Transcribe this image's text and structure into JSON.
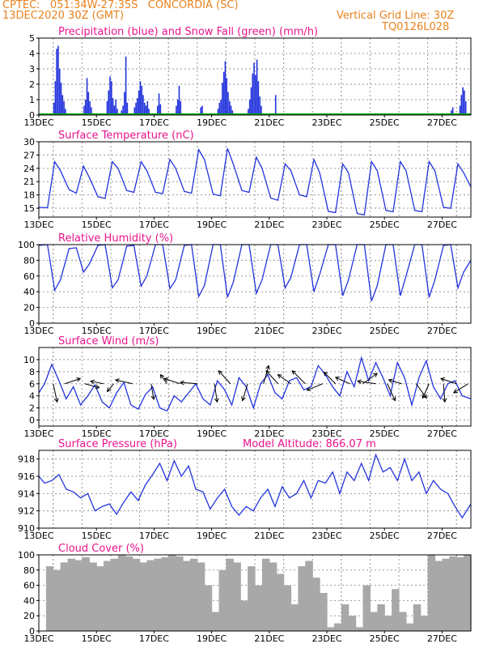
{
  "header": {
    "line1": "CPTEC:   051:34W-27:35S   CONCORDIA (SC)",
    "line2": "13DEC2020 30Z (GMT)",
    "grid_line": "Vertical Grid Line: 30Z",
    "run_code": "TQ0126L028"
  },
  "colors": {
    "header": "#e8821e",
    "title": "#e8148c",
    "series": "#2233dd",
    "snow": "#00aa00",
    "cloud": "#a8a8a8",
    "grid": "#9a9a9a",
    "arrow": "#000000"
  },
  "chart_data": [
    {
      "type": "bar",
      "title": "Precipitation (blue) and Snow Fall (green) (mm/h)",
      "ylim": [
        0,
        5
      ],
      "yticks": [
        0,
        1,
        2,
        3,
        4,
        5
      ],
      "xlim": [
        13,
        28
      ],
      "xticks": [
        "13DEC",
        "15DEC",
        "17DEC",
        "19DEC",
        "21DEC",
        "23DEC",
        "25DEC",
        "27DEC"
      ],
      "series": [
        {
          "name": "Precipitation",
          "kind": "bars",
          "x": [
            13.5,
            13.55,
            13.6,
            13.65,
            13.7,
            13.75,
            13.8,
            13.85,
            13.9,
            14.55,
            14.6,
            14.65,
            14.7,
            14.75,
            14.8,
            15.35,
            15.4,
            15.45,
            15.5,
            15.55,
            15.6,
            15.65,
            15.7,
            15.85,
            15.9,
            15.95,
            16.0,
            16.05,
            16.3,
            16.35,
            16.4,
            16.45,
            16.5,
            16.55,
            16.6,
            16.65,
            16.7,
            16.75,
            16.8,
            17.1,
            17.15,
            17.2,
            17.75,
            17.8,
            17.85,
            17.9,
            18.6,
            18.65,
            19.2,
            19.25,
            19.3,
            19.35,
            19.4,
            19.45,
            19.5,
            19.55,
            19.6,
            19.65,
            19.7,
            20.25,
            20.3,
            20.35,
            20.4,
            20.45,
            20.5,
            20.55,
            20.6,
            20.65,
            20.7,
            21.2,
            27.3,
            27.35,
            27.6,
            27.65,
            27.7,
            27.75,
            27.8
          ],
          "y": [
            0.8,
            2.2,
            4.3,
            4.5,
            3.0,
            2.1,
            1.3,
            0.9,
            0.4,
            0.6,
            1.0,
            2.4,
            1.5,
            0.9,
            0.5,
            0.9,
            1.6,
            2.5,
            2.2,
            1.1,
            0.6,
            1.0,
            0.4,
            0.3,
            0.6,
            1.5,
            3.8,
            0.8,
            0.5,
            0.8,
            1.1,
            1.6,
            2.2,
            1.9,
            1.3,
            0.8,
            0.6,
            0.9,
            0.4,
            0.6,
            1.4,
            0.7,
            0.6,
            1.0,
            1.9,
            0.9,
            0.5,
            0.6,
            0.4,
            0.8,
            1.0,
            2.1,
            2.8,
            3.5,
            2.4,
            1.5,
            0.9,
            0.6,
            0.3,
            0.4,
            1.0,
            1.8,
            2.7,
            3.4,
            2.6,
            3.6,
            2.2,
            1.2,
            0.6,
            1.3,
            0.3,
            0.5,
            0.6,
            1.3,
            1.8,
            1.6,
            0.9
          ]
        },
        {
          "name": "Snow Fall",
          "kind": "zero-line",
          "y": [
            0
          ]
        }
      ]
    },
    {
      "type": "line",
      "title": "Surface Temperature (nC)",
      "ylim": [
        13,
        30
      ],
      "yticks": [
        15,
        18,
        21,
        24,
        27,
        30
      ],
      "xlim": [
        13,
        28
      ],
      "xticks": [
        "13DEC",
        "15DEC",
        "17DEC",
        "19DEC",
        "21DEC",
        "23DEC",
        "25DEC",
        "27DEC"
      ],
      "x": [
        13.0,
        13.3,
        13.55,
        13.75,
        14.05,
        14.3,
        14.55,
        14.75,
        15.05,
        15.3,
        15.55,
        15.75,
        16.05,
        16.3,
        16.55,
        16.75,
        17.05,
        17.3,
        17.55,
        17.75,
        18.05,
        18.3,
        18.55,
        18.75,
        19.05,
        19.3,
        19.55,
        19.75,
        20.05,
        20.3,
        20.55,
        20.75,
        21.05,
        21.3,
        21.55,
        21.75,
        22.05,
        22.3,
        22.55,
        22.75,
        23.05,
        23.3,
        23.55,
        23.75,
        24.05,
        24.3,
        24.55,
        24.75,
        25.05,
        25.3,
        25.55,
        25.75,
        26.05,
        26.3,
        26.55,
        26.75,
        27.05,
        27.3,
        27.55,
        27.75,
        28.0
      ],
      "y": [
        15.2,
        15.1,
        25.5,
        23.5,
        19.2,
        18.4,
        24.5,
        22.0,
        17.6,
        17.2,
        25.5,
        24.0,
        19.0,
        18.6,
        25.5,
        23.5,
        18.6,
        18.3,
        26.0,
        24.0,
        18.8,
        18.4,
        28.2,
        26.0,
        18.2,
        17.8,
        28.5,
        25.0,
        19.0,
        18.6,
        26.5,
        24.0,
        17.3,
        16.8,
        25.0,
        23.5,
        18.0,
        17.6,
        26.0,
        23.0,
        14.3,
        14.0,
        25.0,
        23.0,
        13.8,
        13.5,
        25.5,
        23.5,
        14.5,
        14.2,
        25.5,
        23.5,
        14.5,
        14.2,
        25.5,
        23.5,
        15.2,
        15.0,
        25.0,
        23.0,
        19.8
      ]
    },
    {
      "type": "line",
      "title": "Relative Humidity (%)",
      "ylim": [
        0,
        100
      ],
      "yticks": [
        0,
        20,
        40,
        60,
        80,
        100
      ],
      "xlim": [
        13,
        28
      ],
      "xticks": [
        "13DEC",
        "15DEC",
        "17DEC",
        "19DEC",
        "21DEC",
        "23DEC",
        "25DEC",
        "27DEC"
      ],
      "x": [
        13.0,
        13.3,
        13.55,
        13.75,
        14.05,
        14.3,
        14.55,
        14.75,
        15.05,
        15.3,
        15.55,
        15.75,
        16.05,
        16.3,
        16.55,
        16.75,
        17.05,
        17.3,
        17.55,
        17.75,
        18.05,
        18.3,
        18.55,
        18.75,
        19.05,
        19.3,
        19.55,
        19.75,
        20.05,
        20.3,
        20.55,
        20.75,
        21.05,
        21.3,
        21.55,
        21.75,
        22.05,
        22.3,
        22.55,
        22.75,
        23.05,
        23.3,
        23.55,
        23.75,
        24.05,
        24.3,
        24.55,
        24.75,
        25.05,
        25.3,
        25.55,
        25.75,
        26.05,
        26.3,
        26.55,
        26.75,
        27.05,
        27.3,
        27.55,
        27.75,
        28.0
      ],
      "y": [
        99,
        100,
        42,
        55,
        95,
        96,
        65,
        75,
        99,
        100,
        45,
        55,
        98,
        99,
        47,
        60,
        100,
        100,
        44,
        55,
        99,
        100,
        34,
        48,
        100,
        100,
        33,
        52,
        100,
        100,
        38,
        55,
        100,
        100,
        45,
        58,
        100,
        100,
        40,
        62,
        100,
        100,
        35,
        55,
        100,
        100,
        28,
        48,
        100,
        100,
        35,
        60,
        100,
        100,
        33,
        55,
        99,
        100,
        45,
        65,
        80
      ]
    },
    {
      "type": "line",
      "title": "Surface Wind (m/s)",
      "ylim": [
        -1,
        12
      ],
      "yticks": [
        0,
        2,
        4,
        6,
        8,
        10
      ],
      "xlim": [
        13,
        28
      ],
      "xticks": [
        "13DEC",
        "15DEC",
        "17DEC",
        "19DEC",
        "21DEC",
        "23DEC",
        "25DEC",
        "27DEC"
      ],
      "x": [
        13.0,
        13.2,
        13.45,
        13.7,
        13.95,
        14.2,
        14.45,
        14.7,
        14.95,
        15.2,
        15.45,
        15.7,
        15.95,
        16.2,
        16.45,
        16.7,
        16.95,
        17.2,
        17.45,
        17.7,
        17.95,
        18.2,
        18.45,
        18.7,
        18.95,
        19.2,
        19.45,
        19.7,
        19.95,
        20.2,
        20.45,
        20.7,
        20.95,
        21.2,
        21.45,
        21.7,
        21.95,
        22.2,
        22.45,
        22.7,
        22.95,
        23.2,
        23.45,
        23.7,
        23.95,
        24.2,
        24.45,
        24.7,
        24.95,
        25.2,
        25.45,
        25.7,
        25.95,
        26.2,
        26.45,
        26.7,
        26.95,
        27.2,
        27.45,
        27.7,
        28.0
      ],
      "y": [
        4.5,
        6.0,
        9.2,
        6.5,
        3.5,
        5.5,
        2.5,
        4.0,
        5.8,
        3.0,
        2.0,
        4.5,
        6.2,
        2.5,
        1.8,
        4.2,
        5.5,
        2.0,
        1.5,
        4.0,
        3.0,
        4.5,
        6.0,
        3.5,
        2.5,
        6.5,
        5.0,
        2.5,
        7.0,
        5.5,
        2.0,
        6.0,
        7.5,
        4.5,
        3.5,
        6.5,
        7.0,
        5.0,
        5.5,
        9.0,
        7.5,
        5.5,
        4.0,
        8.0,
        5.5,
        10.3,
        6.5,
        9.5,
        7.0,
        4.0,
        9.5,
        7.0,
        2.5,
        7.0,
        9.8,
        5.5,
        3.5,
        6.0,
        6.5,
        4.0,
        3.5
      ],
      "vectors": [
        {
          "x": 13.5,
          "u": 0.3,
          "v": -1.4
        },
        {
          "x": 13.9,
          "u": 1.2,
          "v": 0.4
        },
        {
          "x": 14.6,
          "u": 1.1,
          "v": -0.3
        },
        {
          "x": 15.25,
          "u": -1.0,
          "v": 0.2
        },
        {
          "x": 15.6,
          "u": -0.5,
          "v": -0.6
        },
        {
          "x": 16.25,
          "u": -1.3,
          "v": 0.3
        },
        {
          "x": 16.9,
          "u": 0.2,
          "v": -1.2
        },
        {
          "x": 17.45,
          "u": -0.5,
          "v": 0.7
        },
        {
          "x": 17.9,
          "u": -1.2,
          "v": 0.4
        },
        {
          "x": 18.5,
          "u": -1.3,
          "v": 0.1
        },
        {
          "x": 19.1,
          "u": 0.2,
          "v": -1.4
        },
        {
          "x": 19.65,
          "u": -0.9,
          "v": 1.0
        },
        {
          "x": 20.25,
          "u": -0.4,
          "v": -1.3
        },
        {
          "x": 20.8,
          "u": 0.4,
          "v": 1.4
        },
        {
          "x": 21.3,
          "u": -0.9,
          "v": 1.0
        },
        {
          "x": 21.75,
          "u": -1.0,
          "v": 0.7
        },
        {
          "x": 22.25,
          "u": -1.0,
          "v": 1.0
        },
        {
          "x": 22.85,
          "u": -1.2,
          "v": -0.5
        },
        {
          "x": 23.3,
          "u": -0.9,
          "v": 0.9
        },
        {
          "x": 23.8,
          "u": -1.1,
          "v": 0.5
        },
        {
          "x": 24.25,
          "u": 1.1,
          "v": 0.8
        },
        {
          "x": 24.7,
          "u": -1.4,
          "v": 0.2
        },
        {
          "x": 25.1,
          "u": 0.6,
          "v": -1.3
        },
        {
          "x": 25.6,
          "u": -1.0,
          "v": 0.3
        },
        {
          "x": 26.1,
          "u": 0.8,
          "v": -1.1
        },
        {
          "x": 26.55,
          "u": -0.5,
          "v": -1.1
        },
        {
          "x": 27.05,
          "u": 0.1,
          "v": -1.4
        },
        {
          "x": 27.5,
          "u": -1.2,
          "v": 0.4
        },
        {
          "x": 27.9,
          "u": -1.1,
          "v": -0.7
        }
      ]
    },
    {
      "type": "line",
      "title": "Surface Pressure (hPa)",
      "subtitle": "Model Altitude: 866.07 m",
      "ylim": [
        910,
        919
      ],
      "yticks": [
        910,
        912,
        914,
        916,
        918
      ],
      "xlim": [
        13,
        28
      ],
      "xticks": [
        "13DEC",
        "15DEC",
        "17DEC",
        "19DEC",
        "21DEC",
        "23DEC",
        "25DEC",
        "27DEC"
      ],
      "x": [
        13.0,
        13.2,
        13.45,
        13.7,
        13.95,
        14.2,
        14.45,
        14.7,
        14.95,
        15.2,
        15.45,
        15.7,
        15.95,
        16.2,
        16.45,
        16.7,
        16.95,
        17.2,
        17.45,
        17.7,
        17.95,
        18.2,
        18.45,
        18.7,
        18.95,
        19.2,
        19.45,
        19.7,
        19.95,
        20.2,
        20.45,
        20.7,
        20.95,
        21.2,
        21.45,
        21.7,
        21.95,
        22.2,
        22.45,
        22.7,
        22.95,
        23.2,
        23.45,
        23.7,
        23.95,
        24.2,
        24.45,
        24.7,
        24.95,
        25.2,
        25.45,
        25.7,
        25.95,
        26.2,
        26.45,
        26.7,
        26.95,
        27.2,
        27.45,
        27.7,
        28.0
      ],
      "y": [
        916.0,
        915.2,
        915.5,
        916.2,
        914.5,
        914.2,
        913.5,
        914.0,
        912.0,
        912.5,
        912.8,
        911.6,
        913.0,
        914.2,
        913.2,
        915.0,
        916.2,
        917.5,
        915.5,
        917.8,
        916.0,
        917.2,
        914.5,
        914.2,
        912.2,
        913.5,
        914.5,
        912.5,
        911.5,
        912.5,
        912.0,
        913.5,
        914.5,
        912.5,
        914.8,
        913.5,
        914.0,
        915.5,
        913.5,
        915.5,
        915.2,
        916.5,
        914.0,
        916.5,
        915.5,
        917.5,
        915.5,
        918.5,
        916.5,
        917.0,
        915.5,
        918.0,
        915.5,
        916.5,
        914.0,
        915.5,
        914.5,
        914.0,
        912.5,
        911.2,
        912.8
      ]
    },
    {
      "type": "bar",
      "title": "Cloud Cover (%)",
      "ylim": [
        0,
        100
      ],
      "yticks": [
        0,
        20,
        40,
        60,
        80,
        100
      ],
      "xlim": [
        13,
        28
      ],
      "xticks": [
        "13DEC",
        "15DEC",
        "17DEC",
        "19DEC",
        "21DEC",
        "23DEC",
        "25DEC",
        "27DEC"
      ],
      "x": [
        13.0,
        13.25,
        13.5,
        13.75,
        14.0,
        14.25,
        14.5,
        14.75,
        15.0,
        15.25,
        15.5,
        15.75,
        16.0,
        16.25,
        16.5,
        16.75,
        17.0,
        17.25,
        17.5,
        17.75,
        18.0,
        18.25,
        18.5,
        18.75,
        19.0,
        19.25,
        19.5,
        19.75,
        20.0,
        20.25,
        20.5,
        20.75,
        21.0,
        21.25,
        21.5,
        21.75,
        22.0,
        22.25,
        22.5,
        22.75,
        23.0,
        23.25,
        23.5,
        23.75,
        24.0,
        24.25,
        24.5,
        24.75,
        25.0,
        25.25,
        25.5,
        25.75,
        26.0,
        26.25,
        26.5,
        26.75,
        27.0,
        27.25,
        27.5,
        27.75
      ],
      "values": [
        0,
        85,
        80,
        90,
        95,
        93,
        97,
        90,
        85,
        92,
        95,
        100,
        98,
        95,
        90,
        93,
        95,
        97,
        100,
        98,
        92,
        95,
        90,
        60,
        25,
        80,
        95,
        90,
        40,
        85,
        60,
        95,
        90,
        75,
        60,
        35,
        85,
        92,
        70,
        50,
        5,
        10,
        35,
        20,
        5,
        60,
        25,
        35,
        20,
        55,
        25,
        10,
        35,
        20,
        100,
        92,
        95,
        98,
        97,
        100
      ]
    }
  ]
}
